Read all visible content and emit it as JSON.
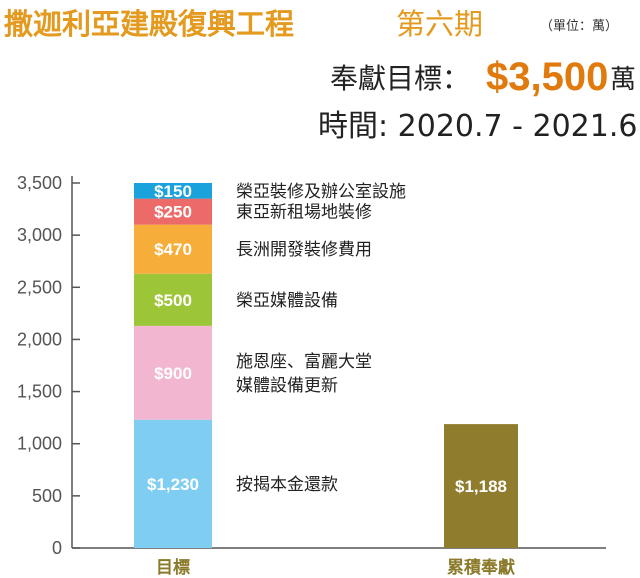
{
  "header": {
    "title": "撒迦利亞建殿復興工程",
    "phase": "第六期",
    "unit_note": "（單位：萬）",
    "goal_label": "奉獻目標：",
    "goal_amount": "$3,500",
    "goal_unit": "萬",
    "period": "時間: 2020.7 - 2021.6"
  },
  "chart_data": {
    "type": "bar",
    "stacked": true,
    "categories": [
      "目標",
      "累積奉獻"
    ],
    "ylim": [
      0,
      3500
    ],
    "yticks": [
      0,
      500,
      1000,
      1500,
      2000,
      2500,
      3000,
      3500
    ],
    "ytick_labels": [
      "0",
      "500",
      "1,000",
      "1,500",
      "2,000",
      "2,500",
      "3,000",
      "3,500"
    ],
    "grid": false,
    "segments": [
      {
        "category": "目標",
        "value": 1230,
        "label": "$1,230",
        "color": "#7fcdf0",
        "annotation": [
          "按揭本金還款"
        ]
      },
      {
        "category": "目標",
        "value": 900,
        "label": "$900",
        "color": "#f2b6d0",
        "annotation": [
          "施恩座、富麗大堂",
          "媒體設備更新"
        ]
      },
      {
        "category": "目標",
        "value": 500,
        "label": "$500",
        "color": "#9cc637",
        "annotation": [
          "榮亞媒體設備"
        ]
      },
      {
        "category": "目標",
        "value": 470,
        "label": "$470",
        "color": "#f7ad3a",
        "annotation": [
          "長洲開發裝修費用"
        ]
      },
      {
        "category": "目標",
        "value": 250,
        "label": "$250",
        "color": "#ec6b68",
        "annotation": [
          "東亞新租場地裝修"
        ]
      },
      {
        "category": "目標",
        "value": 150,
        "label": "$150",
        "color": "#1aa2dd",
        "annotation": [
          "榮亞裝修及辦公室設施"
        ]
      },
      {
        "category": "累積奉獻",
        "value": 1188,
        "label": "$1,188",
        "color": "#8f7c2c",
        "annotation": []
      }
    ]
  }
}
